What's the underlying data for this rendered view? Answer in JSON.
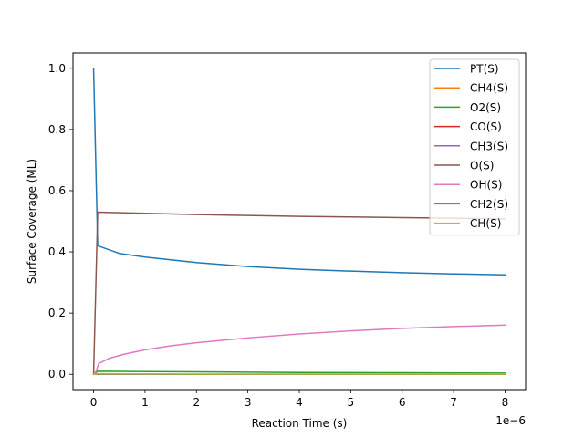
{
  "chart_data": {
    "type": "line",
    "title": "",
    "xlabel": "Reaction Time (s)",
    "ylabel": "Surface Coverage (ML)",
    "x_offset_label": "1e−6",
    "x_scale": 1e-06,
    "xlim": [
      -0.4,
      8.4
    ],
    "ylim": [
      -0.05,
      1.05
    ],
    "x_ticks": [
      0,
      1,
      2,
      3,
      4,
      5,
      6,
      7,
      8
    ],
    "x_tick_labels": [
      "0",
      "1",
      "2",
      "3",
      "4",
      "5",
      "6",
      "7",
      "8"
    ],
    "y_ticks": [
      0.0,
      0.2,
      0.4,
      0.6,
      0.8,
      1.0
    ],
    "y_tick_labels": [
      "0.0",
      "0.2",
      "0.4",
      "0.6",
      "0.8",
      "1.0"
    ],
    "grid": false,
    "legend_position": "upper right",
    "series": [
      {
        "name": "PT(S)",
        "color": "#1f77b4",
        "x": [
          0,
          0.08,
          0.5,
          1,
          2,
          3,
          4,
          5,
          6,
          7,
          8
        ],
        "y": [
          1.0,
          0.42,
          0.395,
          0.383,
          0.365,
          0.352,
          0.343,
          0.337,
          0.332,
          0.328,
          0.325
        ]
      },
      {
        "name": "CH4(S)",
        "color": "#ff7f0e",
        "x": [
          0,
          0.08,
          1,
          2,
          4,
          6,
          8
        ],
        "y": [
          0.0,
          0.0,
          0.0,
          0.0,
          0.0,
          0.0,
          0.0
        ]
      },
      {
        "name": "O2(S)",
        "color": "#2ca02c",
        "x": [
          0,
          0.08,
          1,
          2,
          4,
          6,
          8
        ],
        "y": [
          0.0,
          0.01,
          0.009,
          0.008,
          0.006,
          0.005,
          0.004
        ]
      },
      {
        "name": "CO(S)",
        "color": "#d62728",
        "x": [
          0,
          0.08,
          1,
          2,
          4,
          6,
          8
        ],
        "y": [
          0.0,
          0.0,
          0.0,
          0.0,
          0.0,
          0.0,
          0.0
        ]
      },
      {
        "name": "CH3(S)",
        "color": "#9467bd",
        "x": [
          0,
          0.08,
          1,
          2,
          4,
          6,
          8
        ],
        "y": [
          0.0,
          0.0,
          0.0,
          0.0,
          0.0,
          0.0,
          0.0
        ]
      },
      {
        "name": "O(S)",
        "color": "#8c564b",
        "x": [
          0,
          0.08,
          1,
          2,
          3,
          4,
          5,
          6,
          7,
          8
        ],
        "y": [
          0.0,
          0.53,
          0.526,
          0.522,
          0.519,
          0.516,
          0.514,
          0.512,
          0.51,
          0.508
        ]
      },
      {
        "name": "OH(S)",
        "color": "#e377c2",
        "x": [
          0,
          0.05,
          0.1,
          0.3,
          0.6,
          1,
          1.5,
          2,
          3,
          4,
          5,
          6,
          7,
          8
        ],
        "y": [
          0.0,
          0.01,
          0.035,
          0.052,
          0.066,
          0.08,
          0.093,
          0.103,
          0.119,
          0.132,
          0.142,
          0.15,
          0.156,
          0.161
        ]
      },
      {
        "name": "CH2(S)",
        "color": "#7f7f7f",
        "x": [
          0,
          0.08,
          1,
          2,
          4,
          6,
          8
        ],
        "y": [
          0.0,
          0.0,
          0.0,
          0.0,
          0.0,
          0.0,
          0.0
        ]
      },
      {
        "name": "CH(S)",
        "color": "#bcbd22",
        "x": [
          0,
          0.08,
          1,
          2,
          4,
          6,
          8
        ],
        "y": [
          0.0,
          0.002,
          0.0015,
          0.001,
          0.001,
          0.001,
          0.001
        ]
      }
    ]
  }
}
